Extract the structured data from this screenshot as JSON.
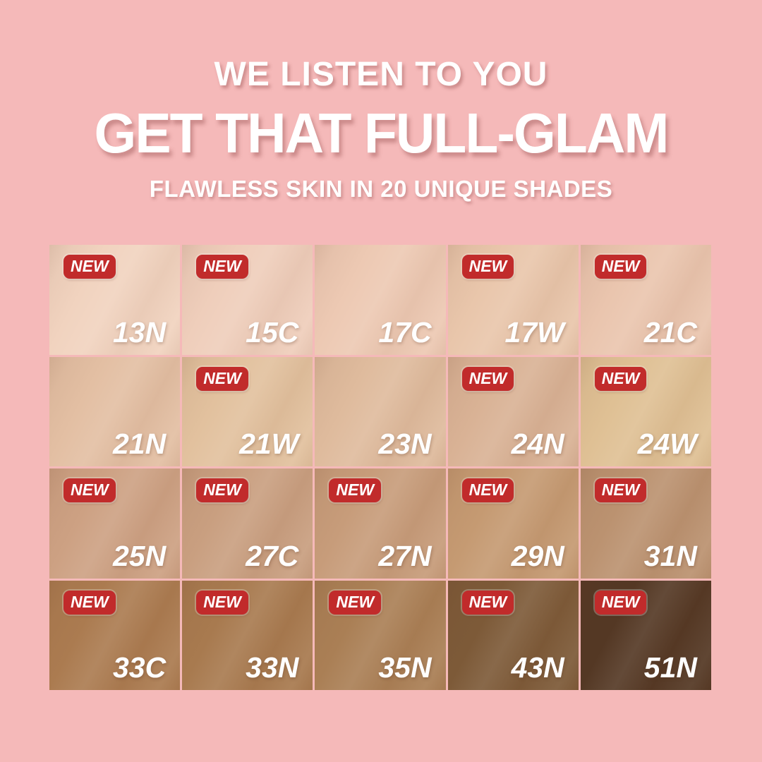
{
  "page": {
    "background_color": "#f5b9b9"
  },
  "header": {
    "line1": "WE LISTEN TO YOU",
    "line2": "GET THAT FULL-GLAM",
    "line3": "FLAWLESS SKIN IN 20 UNIQUE SHADES",
    "text_color": "#ffffff"
  },
  "badge": {
    "label": "NEW",
    "background_color": "#c12b2b",
    "text_color": "#ffffff"
  },
  "shade_grid": {
    "rows": 4,
    "columns": 5,
    "shades": [
      {
        "code": "13N",
        "is_new": true,
        "color": "#f1d3bf"
      },
      {
        "code": "15C",
        "is_new": true,
        "color": "#efcebb"
      },
      {
        "code": "17C",
        "is_new": false,
        "color": "#edc9b3"
      },
      {
        "code": "17W",
        "is_new": true,
        "color": "#e9c6ab"
      },
      {
        "code": "21C",
        "is_new": true,
        "color": "#eac5ae"
      },
      {
        "code": "21N",
        "is_new": false,
        "color": "#e3bfa3"
      },
      {
        "code": "21W",
        "is_new": true,
        "color": "#e2c19e"
      },
      {
        "code": "23N",
        "is_new": false,
        "color": "#dfbb9d"
      },
      {
        "code": "24N",
        "is_new": true,
        "color": "#d9b295"
      },
      {
        "code": "24W",
        "is_new": true,
        "color": "#dfc094"
      },
      {
        "code": "25N",
        "is_new": true,
        "color": "#cda183"
      },
      {
        "code": "27C",
        "is_new": true,
        "color": "#c99f80"
      },
      {
        "code": "27N",
        "is_new": true,
        "color": "#c79c7a"
      },
      {
        "code": "29N",
        "is_new": true,
        "color": "#c59a72"
      },
      {
        "code": "31N",
        "is_new": true,
        "color": "#bb9270"
      },
      {
        "code": "33C",
        "is_new": true,
        "color": "#ab7b50"
      },
      {
        "code": "33N",
        "is_new": true,
        "color": "#a87a4f"
      },
      {
        "code": "35N",
        "is_new": true,
        "color": "#aa7f55"
      },
      {
        "code": "43N",
        "is_new": true,
        "color": "#7d5a38"
      },
      {
        "code": "51N",
        "is_new": true,
        "color": "#543824"
      }
    ]
  }
}
